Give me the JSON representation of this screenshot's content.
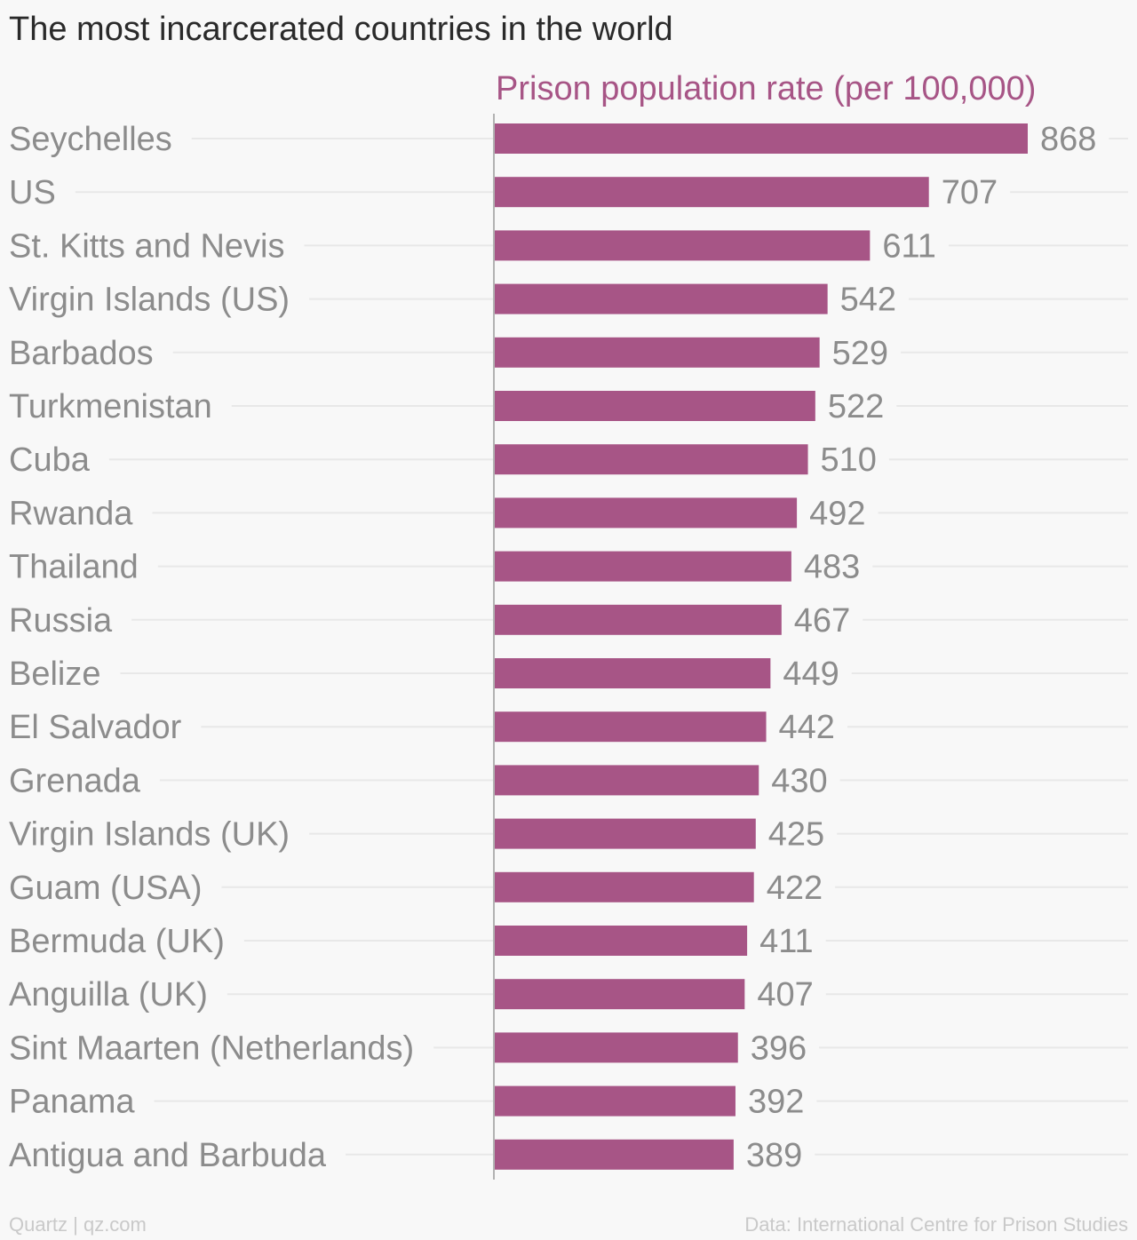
{
  "title": "The most incarcerated countries in the world",
  "footer": {
    "source_left": "Quartz | qz.com",
    "source_right": "Data: International Centre for Prison Studies"
  },
  "colors": {
    "bar": "#a75586",
    "series_label": "#a75586",
    "category_text": "#8c8c8c",
    "value_text": "#8c8c8c",
    "gridline": "#e8e8e8",
    "axis": "#9a9a9a"
  },
  "chart_data": {
    "type": "bar",
    "orientation": "horizontal",
    "title": "The most incarcerated countries in the world",
    "series": [
      {
        "name": "Prison population rate (per 100,000)",
        "values": [
          868,
          707,
          611,
          542,
          529,
          522,
          510,
          492,
          483,
          467,
          449,
          442,
          430,
          425,
          422,
          411,
          407,
          396,
          392,
          389
        ]
      }
    ],
    "categories": [
      "Seychelles",
      "US",
      "St. Kitts and Nevis",
      "Virgin Islands (US)",
      "Barbados",
      "Turkmenistan",
      "Cuba",
      "Rwanda",
      "Thailand",
      "Russia",
      "Belize",
      "El Salvador",
      "Grenada",
      "Virgin Islands (UK)",
      "Guam (USA)",
      "Bermuda (UK)",
      "Anguilla (UK)",
      "Sint Maarten (Netherlands)",
      "Panama",
      "Antigua and Barbuda"
    ],
    "xlim": [
      0,
      868
    ],
    "data_labels": true,
    "grid": true
  }
}
